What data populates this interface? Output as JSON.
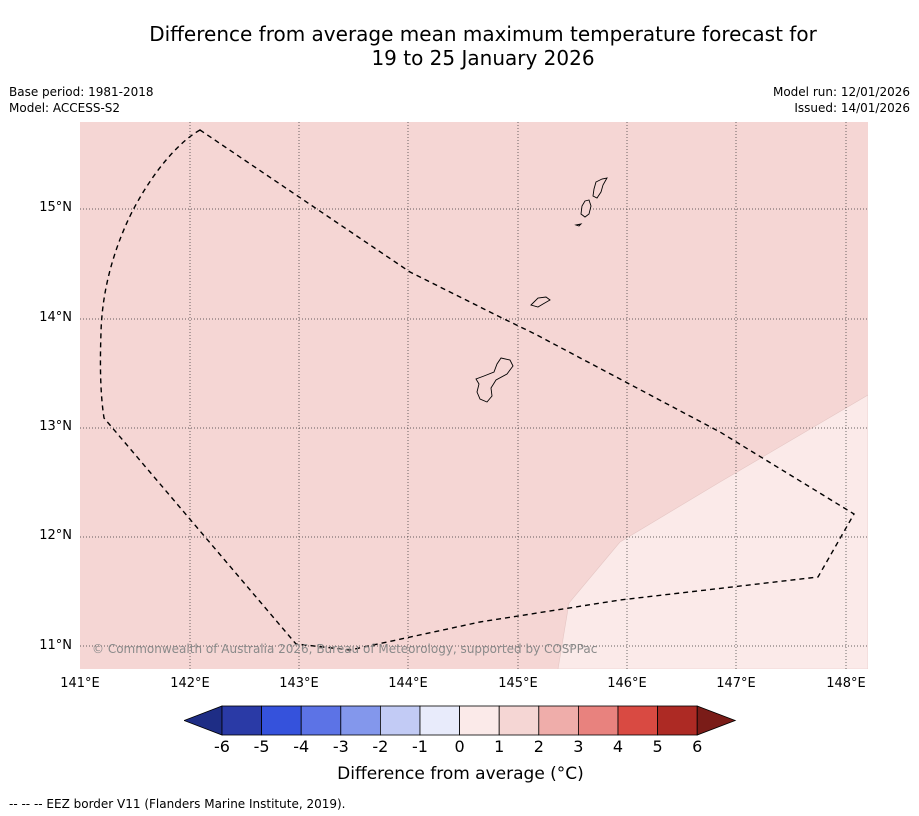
{
  "title": {
    "line1": "Difference from average mean maximum temperature forecast for",
    "line2": "19 to 25 January 2026"
  },
  "meta": {
    "base_period": "Base period: 1981-2018",
    "model": "Model: ACCESS-S2",
    "model_run": "Model run: 12/01/2026",
    "issued": "Issued: 14/01/2026"
  },
  "map": {
    "lat_labels": [
      "15°N",
      "14°N",
      "13°N",
      "12°N",
      "11°N"
    ],
    "lon_labels": [
      "141°E",
      "142°E",
      "143°E",
      "144°E",
      "145°E",
      "146°E",
      "147°E",
      "148°E"
    ],
    "region_colors": {
      "anomaly_1_to_2": "#f5d6d4",
      "anomaly_0_to_1": "#fbeae9"
    },
    "copyright": "© Commonwealth of Australia 2026, Bureau of Meteorology, supported by COSPPac"
  },
  "colorbar": {
    "labels": [
      "-6",
      "-5",
      "-4",
      "-3",
      "-2",
      "-1",
      "0",
      "1",
      "2",
      "3",
      "4",
      "5",
      "6"
    ],
    "colors": [
      "#2a3aa6",
      "#3552dc",
      "#5c73e6",
      "#8397ec",
      "#c2cbf5",
      "#e8ebfb",
      "#fbeae9",
      "#f5d6d4",
      "#efadaa",
      "#e8827e",
      "#d94a42",
      "#ad2a24"
    ],
    "under_color": "#1e2d85",
    "over_color": "#7a1c18",
    "title": "Difference from average (°C)"
  },
  "footnote": "--  --  -- EEZ border V11 (Flanders Marine Institute, 2019)."
}
